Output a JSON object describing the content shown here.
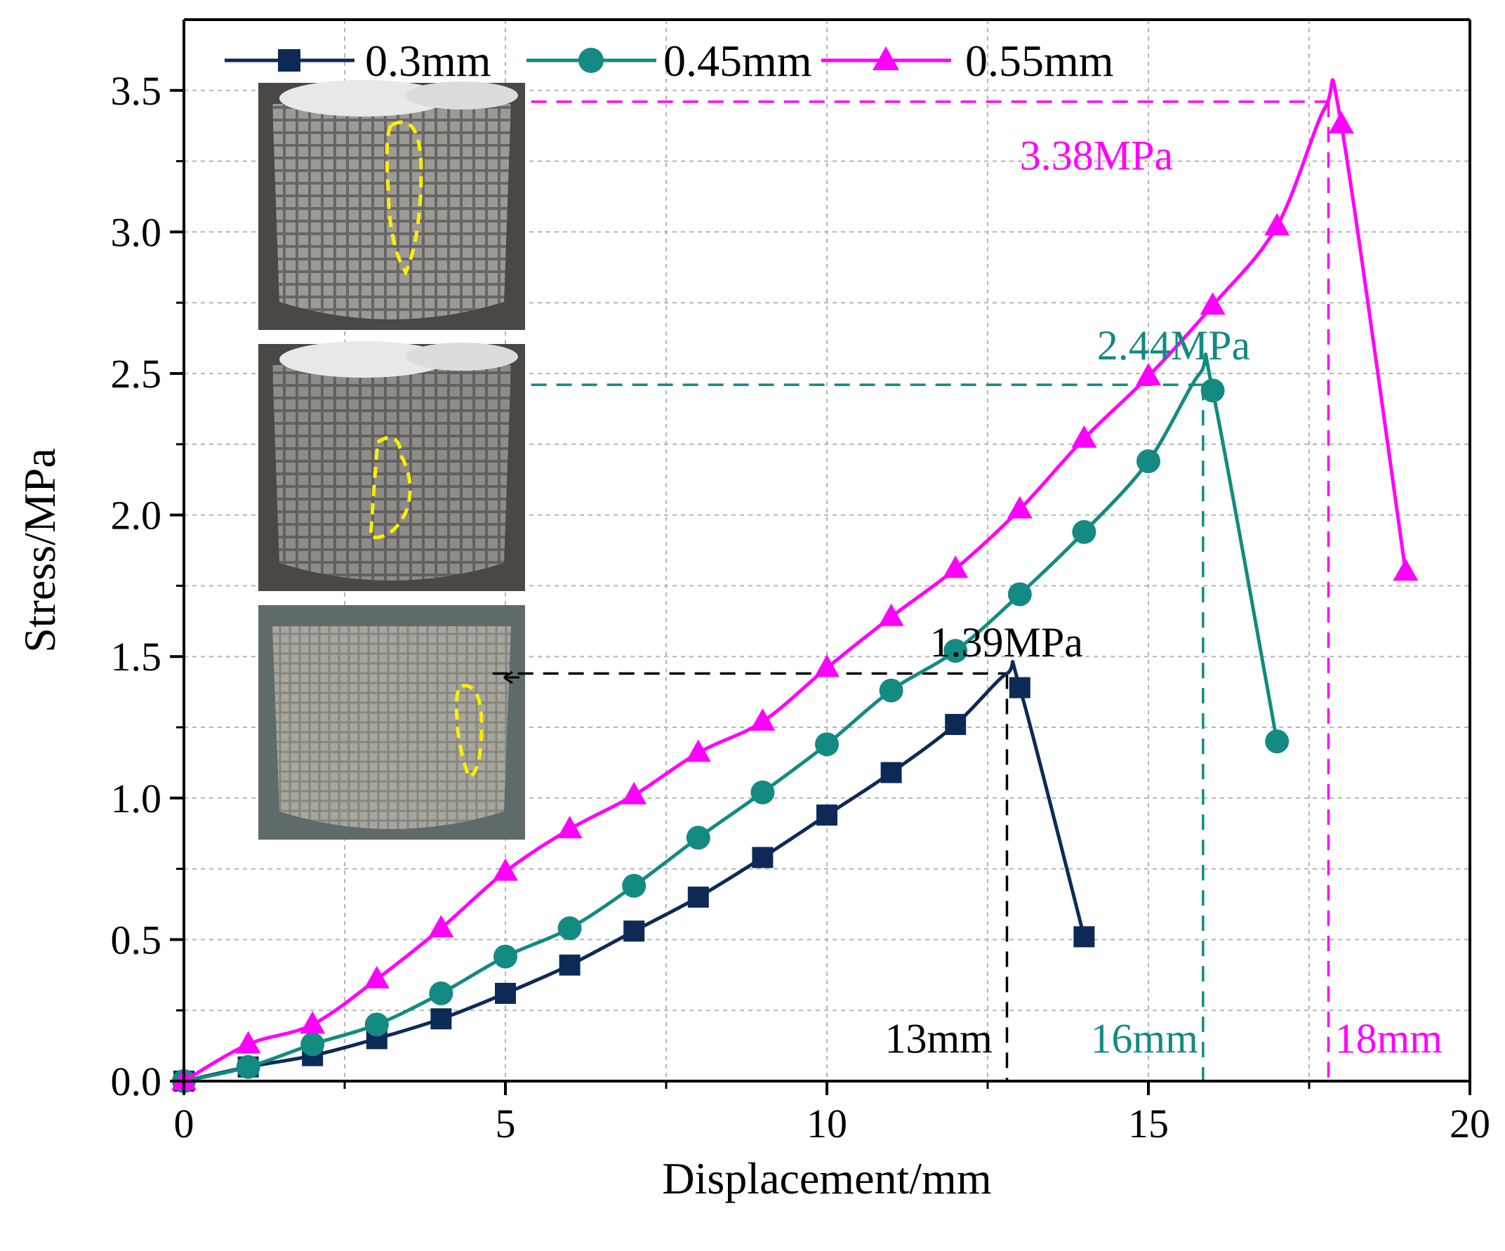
{
  "chart_data": {
    "type": "line",
    "xlabel": "Displacement/mm",
    "ylabel": "Stress/MPa",
    "xlim": [
      0,
      20
    ],
    "ylim": [
      0,
      3.75
    ],
    "x_ticks": [
      0,
      5,
      10,
      15,
      20
    ],
    "y_ticks": [
      0.0,
      0.5,
      1.0,
      1.5,
      2.0,
      2.5,
      3.0,
      3.5
    ],
    "x_tick_labels": [
      "0",
      "5",
      "10",
      "15",
      "20"
    ],
    "y_tick_labels": [
      "0.0",
      "0.5",
      "1.0",
      "1.5",
      "2.0",
      "2.5",
      "3.0",
      "3.5"
    ],
    "grid": true,
    "legend_position": "top",
    "series": [
      {
        "name": "0.3mm",
        "color": "#0d2a57",
        "marker": "square",
        "points": [
          [
            0,
            0.0
          ],
          [
            1,
            0.05
          ],
          [
            2,
            0.09
          ],
          [
            3,
            0.15
          ],
          [
            4,
            0.22
          ],
          [
            5,
            0.31
          ],
          [
            6,
            0.41
          ],
          [
            7,
            0.53
          ],
          [
            8,
            0.65
          ],
          [
            9,
            0.79
          ],
          [
            10,
            0.94
          ],
          [
            11,
            1.09
          ],
          [
            12,
            1.26
          ],
          [
            13,
            1.39
          ],
          [
            14,
            0.51
          ]
        ],
        "peak": [
          12.8,
          1.44
        ]
      },
      {
        "name": "0.45mm",
        "color": "#138a82",
        "marker": "circle",
        "points": [
          [
            0,
            0.0
          ],
          [
            1,
            0.05
          ],
          [
            2,
            0.13
          ],
          [
            3,
            0.2
          ],
          [
            4,
            0.31
          ],
          [
            5,
            0.44
          ],
          [
            6,
            0.54
          ],
          [
            7,
            0.69
          ],
          [
            8,
            0.86
          ],
          [
            9,
            1.02
          ],
          [
            10,
            1.19
          ],
          [
            11,
            1.38
          ],
          [
            12,
            1.52
          ],
          [
            13,
            1.72
          ],
          [
            14,
            1.94
          ],
          [
            15,
            2.19
          ],
          [
            16,
            2.44
          ],
          [
            17,
            1.2
          ]
        ],
        "peak": [
          15.8,
          2.5
        ]
      },
      {
        "name": "0.55mm",
        "color": "#ff00ff",
        "marker": "triangle",
        "points": [
          [
            0,
            0.0
          ],
          [
            1,
            0.13
          ],
          [
            2,
            0.2
          ],
          [
            3,
            0.36
          ],
          [
            4,
            0.54
          ],
          [
            5,
            0.74
          ],
          [
            6,
            0.89
          ],
          [
            7,
            1.01
          ],
          [
            8,
            1.16
          ],
          [
            9,
            1.27
          ],
          [
            10,
            1.46
          ],
          [
            11,
            1.64
          ],
          [
            12,
            1.81
          ],
          [
            13,
            2.02
          ],
          [
            14,
            2.27
          ],
          [
            15,
            2.49
          ],
          [
            16,
            2.74
          ],
          [
            17,
            3.02
          ],
          [
            18,
            3.38
          ],
          [
            19,
            1.8
          ]
        ],
        "peak": [
          17.75,
          3.44
        ]
      }
    ],
    "annotations": [
      {
        "id": "ann_03",
        "text": "1.39MPa",
        "series": "0.3mm",
        "label_at": [
          11.6,
          1.5
        ]
      },
      {
        "id": "ann_045",
        "text": "2.44MPa",
        "series": "0.45mm",
        "label_at": [
          14.2,
          2.55
        ]
      },
      {
        "id": "ann_055",
        "text": "3.38MPa",
        "series": "0.55mm",
        "label_at": [
          13.0,
          3.22
        ]
      },
      {
        "id": "ann_13",
        "text": "13mm",
        "series": "0.3mm",
        "label_at": [
          10.9,
          0.1
        ]
      },
      {
        "id": "ann_16",
        "text": "16mm",
        "series": "0.45mm",
        "label_at": [
          14.1,
          0.1
        ]
      },
      {
        "id": "ann_18",
        "text": "18mm",
        "series": "0.55mm",
        "label_at": [
          17.9,
          0.1
        ]
      }
    ],
    "guides": [
      {
        "series": "0.3mm",
        "color": "#000000",
        "x": 12.8,
        "y": 1.44,
        "x_from": 4.8
      },
      {
        "series": "0.45mm",
        "color": "#138a82",
        "x": 15.85,
        "y": 2.46,
        "x_from": 5.4
      },
      {
        "series": "0.55mm",
        "color": "#ff00ff",
        "x": 17.8,
        "y": 3.46,
        "x_from": 5.4
      }
    ],
    "inset_photos": [
      {
        "name": "inset-photo-055",
        "caption": "0.55mm specimen photo"
      },
      {
        "name": "inset-photo-045",
        "caption": "0.45mm specimen photo"
      },
      {
        "name": "inset-photo-03",
        "caption": "0.3mm specimen photo"
      }
    ]
  }
}
